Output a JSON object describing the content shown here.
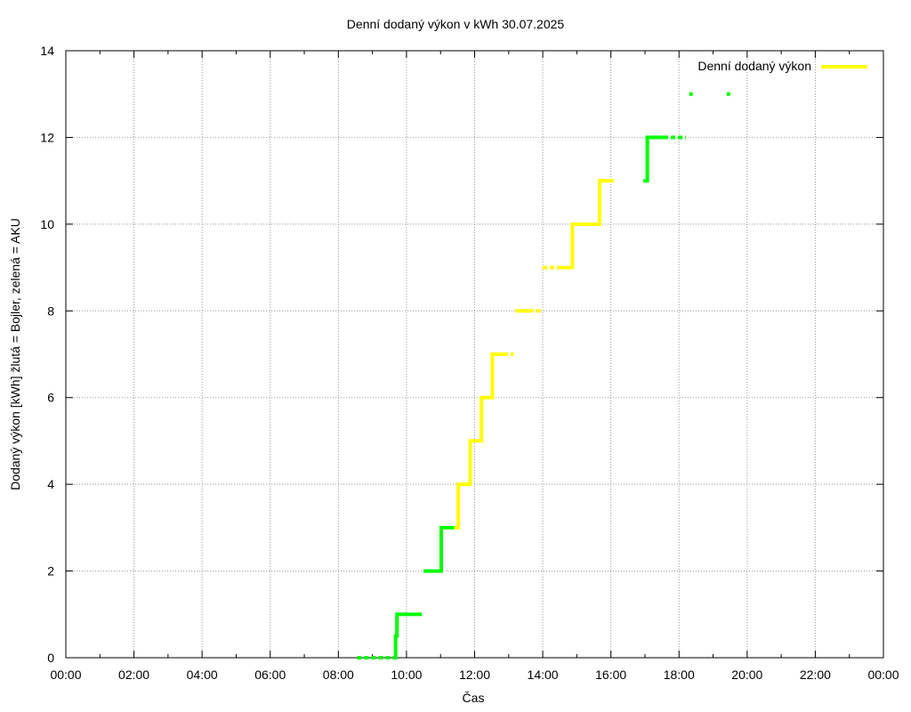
{
  "chart_data": {
    "type": "line",
    "title": "Denní dodaný výkon v kWh 30.07.2025",
    "xlabel": "Čas",
    "ylabel": "Dodaný výkon [kWh]  žlutá = Bojler, zelená = AKU",
    "x_ticks": [
      "00:00",
      "02:00",
      "04:00",
      "06:00",
      "08:00",
      "10:00",
      "12:00",
      "14:00",
      "16:00",
      "18:00",
      "20:00",
      "22:00",
      "00:00"
    ],
    "xlim_hours": [
      0,
      24
    ],
    "ylim": [
      0,
      14
    ],
    "y_ticks": [
      0,
      2,
      4,
      6,
      8,
      10,
      12,
      14
    ],
    "grid": true,
    "legend": {
      "position": "top-right",
      "entries": [
        "Denní dodaný výkon"
      ]
    },
    "colors": {
      "bojler": "#ffff00",
      "aku": "#00ff00",
      "legend": "#ffff00"
    },
    "series": [
      {
        "name": "Denní dodaný výkon",
        "color": "#00ff00",
        "style": "dashed",
        "points": [
          [
            8.55,
            0
          ],
          [
            9.62,
            0
          ]
        ]
      },
      {
        "name": "Denní dodaný výkon",
        "color": "#00ff00",
        "style": "solid",
        "points": [
          [
            9.62,
            0
          ],
          [
            9.68,
            0.5
          ],
          [
            9.72,
            1
          ],
          [
            10.45,
            1
          ]
        ]
      },
      {
        "name": "Denní dodaný výkon",
        "color": "#00ff00",
        "style": "solid",
        "points": [
          [
            10.5,
            2
          ],
          [
            11.0,
            2
          ],
          [
            11.02,
            3
          ],
          [
            11.4,
            3
          ]
        ]
      },
      {
        "name": "Denní dodaný výkon",
        "color": "#ffff00",
        "style": "solid",
        "points": [
          [
            11.4,
            3
          ],
          [
            11.5,
            3
          ],
          [
            11.52,
            4
          ],
          [
            11.85,
            4
          ],
          [
            11.87,
            5
          ],
          [
            12.18,
            5
          ],
          [
            12.2,
            6
          ],
          [
            12.5,
            6
          ],
          [
            12.52,
            7
          ],
          [
            12.85,
            7
          ]
        ]
      },
      {
        "name": "Denní dodaný výkon",
        "color": "#ffff00",
        "style": "dashed",
        "points": [
          [
            12.85,
            7
          ],
          [
            13.15,
            7
          ]
        ]
      },
      {
        "name": "Denní dodaný výkon",
        "color": "#ffff00",
        "style": "solid",
        "points": [
          [
            13.2,
            8
          ],
          [
            13.6,
            8
          ]
        ]
      },
      {
        "name": "Denní dodaný výkon",
        "color": "#ffff00",
        "style": "dashed",
        "points": [
          [
            13.6,
            8
          ],
          [
            13.95,
            8
          ]
        ]
      },
      {
        "name": "Denní dodaný výkon",
        "color": "#ffff00",
        "style": "dashed",
        "points": [
          [
            14.0,
            9
          ],
          [
            14.45,
            9
          ]
        ]
      },
      {
        "name": "Denní dodaný výkon",
        "color": "#ffff00",
        "style": "solid",
        "points": [
          [
            14.45,
            9
          ],
          [
            14.85,
            9
          ],
          [
            14.87,
            10
          ],
          [
            15.65,
            10
          ],
          [
            15.67,
            11
          ],
          [
            15.95,
            11
          ]
        ]
      },
      {
        "name": "Denní dodaný výkon",
        "color": "#ffff00",
        "style": "dashed",
        "points": [
          [
            15.95,
            11
          ],
          [
            16.15,
            11
          ]
        ]
      },
      {
        "name": "Denní dodaný výkon",
        "color": "#00ff00",
        "style": "solid",
        "points": [
          [
            16.95,
            11
          ],
          [
            17.05,
            11
          ],
          [
            17.07,
            12
          ],
          [
            17.55,
            12
          ]
        ]
      },
      {
        "name": "Denní dodaný výkon",
        "color": "#00ff00",
        "style": "dashed",
        "points": [
          [
            17.55,
            12
          ],
          [
            18.2,
            12
          ]
        ]
      },
      {
        "name": "Denní dodaný výkon",
        "color": "#00ff00",
        "style": "dots",
        "points": [
          [
            18.35,
            13
          ],
          [
            19.45,
            13
          ]
        ]
      }
    ]
  }
}
